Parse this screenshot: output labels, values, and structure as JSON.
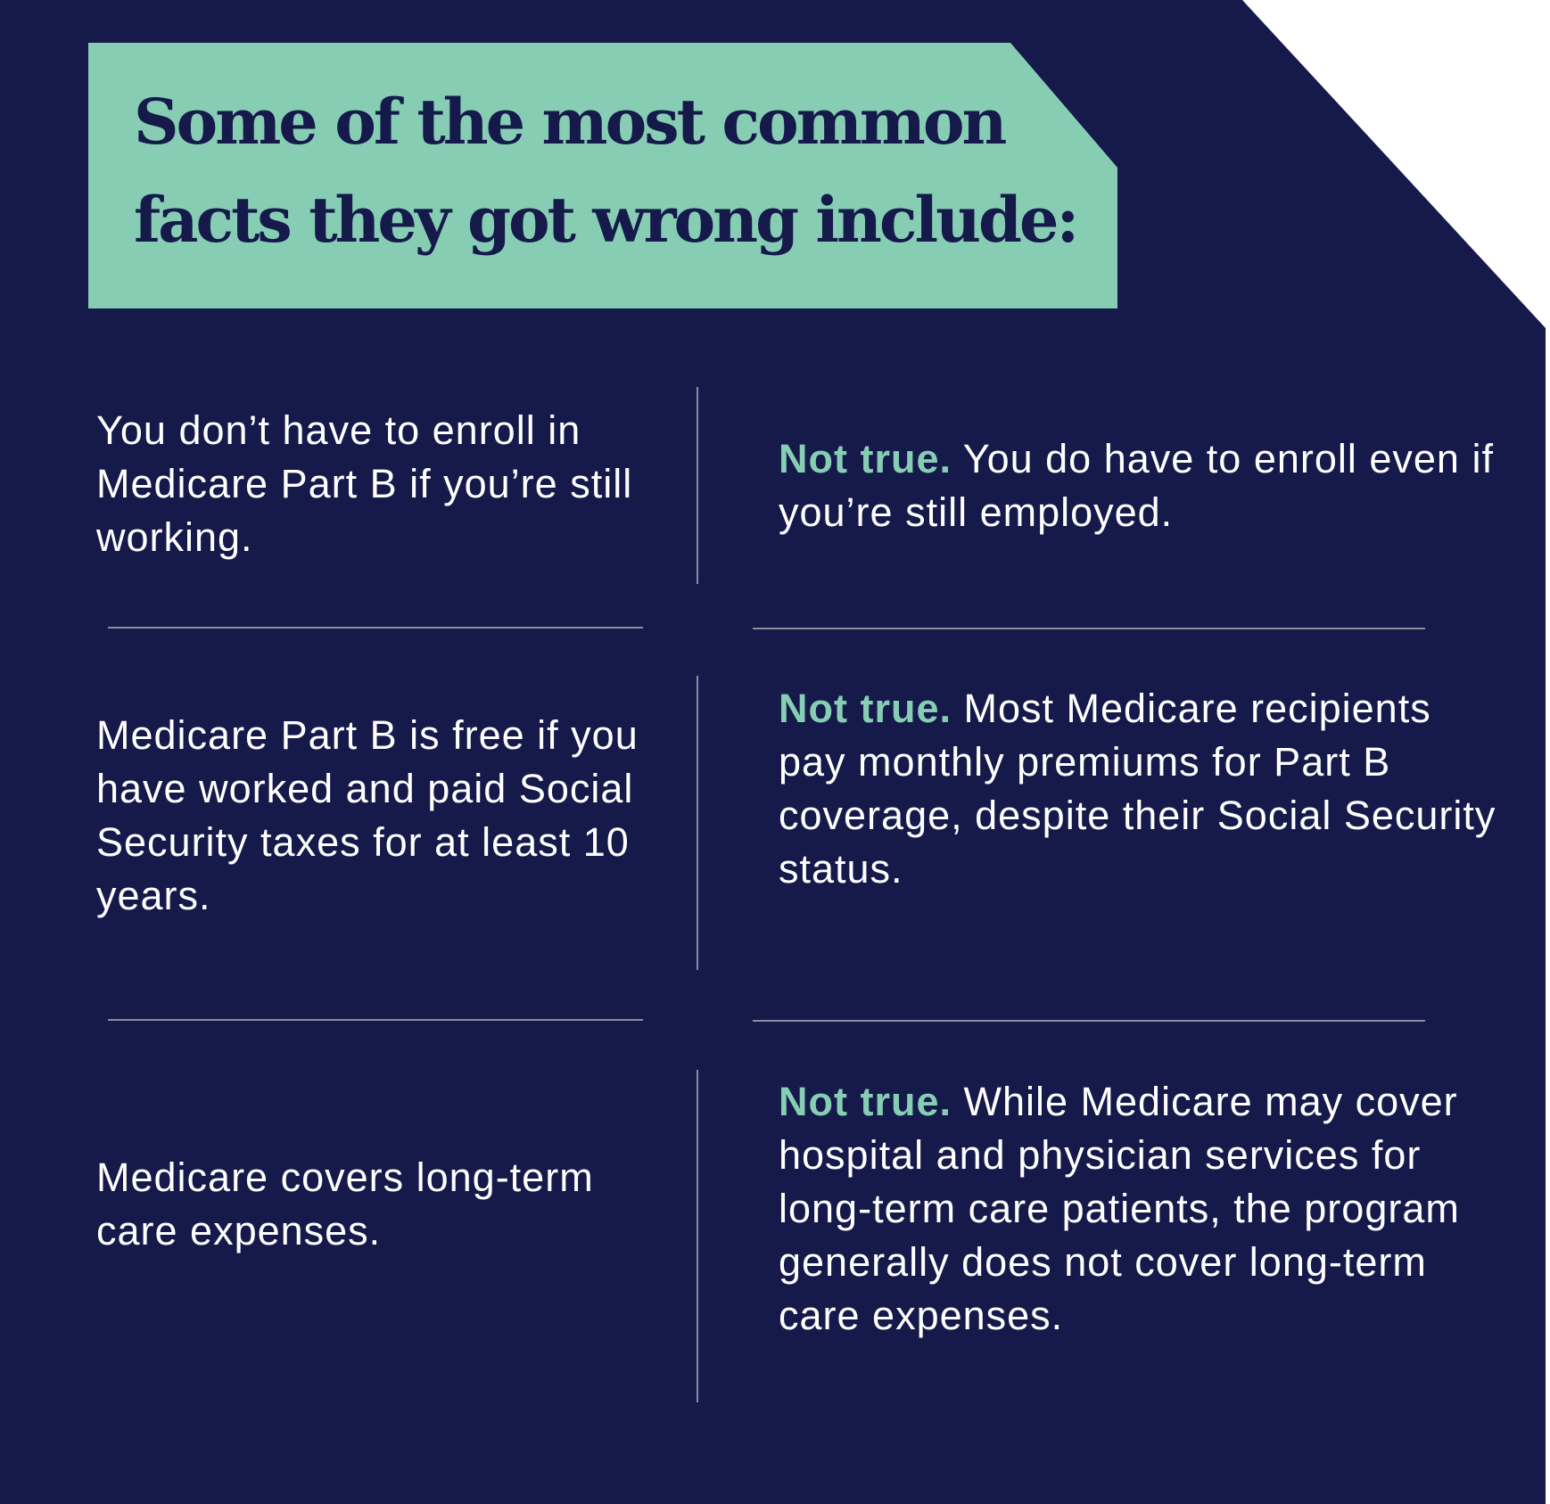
{
  "title": "Some of the most common facts they got wrong include:",
  "colors": {
    "background": "#151a4b",
    "accent": "#86cdb4",
    "text": "#ffffff",
    "divider": "#8a8d9c"
  },
  "rows": [
    {
      "myth": "You don’t have to enroll in Medicare Part B if you’re still working.",
      "fact_lead": "Not true.",
      "fact_text": "You do have to enroll even if you’re still employed."
    },
    {
      "myth": "Medicare Part B is free if you have worked and paid Social Security taxes for at least 10 years.",
      "fact_lead": "Not true.",
      "fact_text": "Most Medicare recipients pay monthly premiums for Part B coverage, despite their Social Security status."
    },
    {
      "myth": "Medicare covers long-term care expenses.",
      "fact_lead": "Not true.",
      "fact_text": "While Medicare may cover hospital and physician services for long-term care patients, the program generally does not cover long-term care expenses."
    }
  ]
}
